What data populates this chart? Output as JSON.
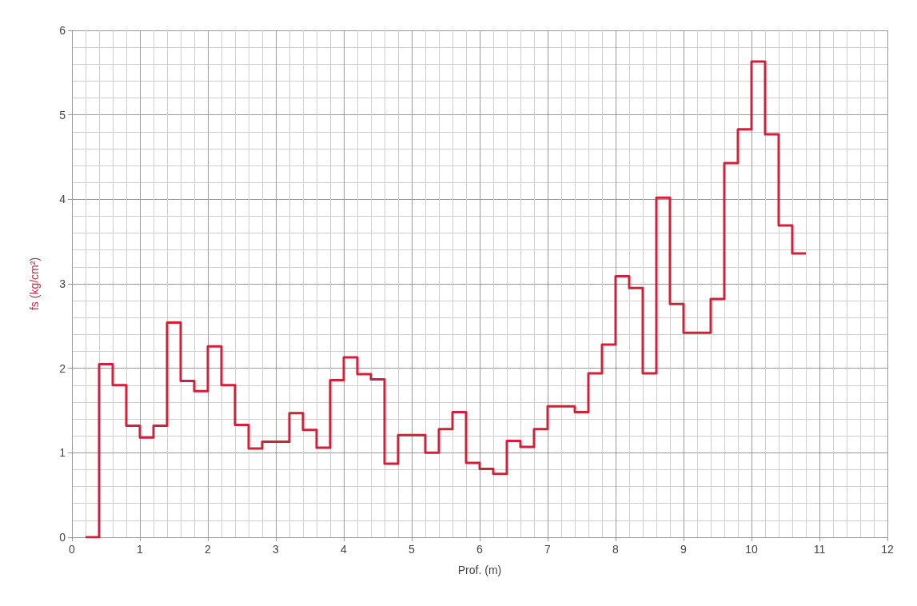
{
  "chart_data": {
    "type": "step",
    "xlabel": "Prof. (m)",
    "ylabel": "fs (kg/cm²)",
    "x": [
      0.2,
      0.4,
      0.6,
      0.8,
      1.0,
      1.2,
      1.4,
      1.6,
      1.8,
      2.0,
      2.2,
      2.4,
      2.6,
      2.8,
      3.0,
      3.2,
      3.4,
      3.6,
      3.8,
      4.0,
      4.2,
      4.4,
      4.6,
      4.8,
      5.0,
      5.2,
      5.4,
      5.6,
      5.8,
      6.0,
      6.2,
      6.4,
      6.6,
      6.8,
      7.0,
      7.2,
      7.4,
      7.6,
      7.8,
      8.0,
      8.2,
      8.4,
      8.6,
      8.8,
      9.0,
      9.2,
      9.4,
      9.6,
      9.8,
      10.0,
      10.2,
      10.4,
      10.6,
      10.8
    ],
    "series": [
      {
        "color": "#d0203a",
        "values": [
          0,
          2.05,
          1.8,
          1.32,
          1.18,
          1.32,
          2.54,
          1.85,
          1.73,
          2.26,
          1.8,
          1.33,
          1.05,
          1.13,
          1.13,
          1.47,
          1.27,
          1.06,
          1.86,
          2.13,
          1.93,
          1.87,
          0.87,
          1.21,
          1.21,
          1.0,
          1.28,
          1.48,
          0.88,
          0.81,
          0.75,
          1.14,
          1.07,
          1.28,
          1.55,
          1.55,
          1.48,
          1.94,
          2.28,
          3.09,
          2.95,
          1.94,
          4.02,
          2.76,
          2.42,
          2.42,
          2.82,
          4.43,
          4.83,
          5.63,
          4.77,
          3.69,
          3.36,
          3.36
        ]
      }
    ],
    "xlim": [
      0,
      12
    ],
    "xticks": [
      0,
      1,
      2,
      3,
      4,
      5,
      6,
      7,
      8,
      9,
      10,
      11,
      12
    ],
    "ylim": [
      0,
      6
    ],
    "yticks": [
      0,
      1,
      2,
      3,
      4,
      5,
      6
    ],
    "grid": true,
    "marker": "none",
    "line_style": "solid"
  }
}
